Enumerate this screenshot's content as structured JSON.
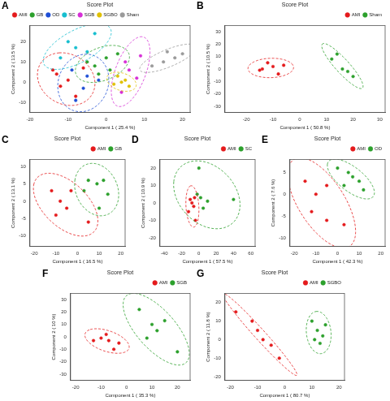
{
  "chart_data": [
    {
      "panel": "A",
      "type": "scatter",
      "title": "Score Plot",
      "x_label": "Component 1 ( 25.4 %)",
      "y_label": "Component 2 ( 13.5 %)",
      "xlim": [
        -20,
        22
      ],
      "ylim": [
        -15,
        28
      ],
      "xticks": [
        -20,
        -10,
        0,
        10,
        20
      ],
      "yticks": [
        -10,
        0,
        10,
        20
      ],
      "grid": false,
      "legend": "top-left",
      "series": [
        {
          "name": "AMI",
          "color": "#e41a1c",
          "marker": "circle",
          "x": [
            -13,
            -12,
            -8,
            -6,
            -10,
            -14
          ],
          "values": [
            4,
            -2,
            -7,
            7,
            1,
            6
          ]
        },
        {
          "name": "GB",
          "color": "#2ca02c",
          "marker": "circle",
          "x": [
            -3,
            0,
            3,
            -5,
            1,
            -2
          ],
          "values": [
            8,
            12,
            14,
            10,
            6,
            4
          ]
        },
        {
          "name": "OD",
          "color": "#1f4fd6",
          "marker": "circle",
          "x": [
            -9,
            -5,
            -6,
            -2,
            -8
          ],
          "values": [
            6,
            3,
            -3,
            1,
            -9
          ]
        },
        {
          "name": "SC",
          "color": "#17becf",
          "marker": "circle",
          "x": [
            -10,
            -5,
            -12,
            -3,
            -8
          ],
          "values": [
            20,
            15,
            12,
            24,
            17
          ]
        },
        {
          "name": "SGB",
          "color": "#d62fd6",
          "marker": "circle",
          "x": [
            5,
            9,
            4,
            8,
            6
          ],
          "values": [
            10,
            13,
            -5,
            2,
            6
          ]
        },
        {
          "name": "SGBO",
          "color": "#e0c000",
          "marker": "circle",
          "x": [
            2,
            5,
            3,
            6,
            4
          ],
          "values": [
            -1,
            1,
            3,
            -2,
            0
          ]
        },
        {
          "name": "Sham",
          "color": "#9a9a9a",
          "marker": "circle",
          "x": [
            15,
            18,
            16,
            12,
            20
          ],
          "values": [
            10,
            12,
            15,
            8,
            14
          ]
        }
      ]
    },
    {
      "panel": "B",
      "type": "scatter",
      "title": "Score Plot",
      "x_label": "Component 1 ( 50.8 %)",
      "y_label": "Component 2 ( 10.5 %)",
      "xlim": [
        -28,
        32
      ],
      "ylim": [
        -35,
        35
      ],
      "xticks": [
        -20,
        -10,
        0,
        10,
        20,
        30
      ],
      "yticks": [
        -30,
        -20,
        -10,
        0,
        10,
        20,
        30
      ],
      "grid": false,
      "legend": "top-right",
      "series": [
        {
          "name": "AMI",
          "color": "#e41a1c",
          "marker": "circle",
          "x": [
            -14,
            -10,
            -6,
            -12,
            -8,
            -15
          ],
          "values": [
            0,
            2,
            3,
            5,
            -4,
            -1
          ]
        },
        {
          "name": "Sham",
          "color": "#2ca02c",
          "marker": "circle",
          "x": [
            14,
            18,
            20,
            16,
            12
          ],
          "values": [
            12,
            -2,
            -6,
            0,
            8
          ]
        }
      ]
    },
    {
      "panel": "C",
      "type": "scatter",
      "title": "Score Plot",
      "x_label": "Component 1 ( 16.5 %)",
      "y_label": "Component 2 ( 13.1 %)",
      "xlim": [
        -22,
        22
      ],
      "ylim": [
        -13,
        12
      ],
      "xticks": [
        -20,
        -10,
        0,
        10,
        20
      ],
      "yticks": [
        -10,
        -5,
        0,
        5,
        10
      ],
      "grid": false,
      "legend": "top-right",
      "series": [
        {
          "name": "AMI",
          "color": "#e41a1c",
          "marker": "circle",
          "x": [
            -12,
            -8,
            -5,
            -10,
            -3,
            5
          ],
          "values": [
            3,
            0,
            -2,
            -4,
            3,
            -6
          ]
        },
        {
          "name": "GB",
          "color": "#2ca02c",
          "marker": "circle",
          "x": [
            5,
            9,
            12,
            14,
            3,
            10
          ],
          "values": [
            6,
            5,
            6,
            2,
            3,
            -2
          ]
        }
      ]
    },
    {
      "panel": "D",
      "type": "scatter",
      "title": "Score Plot",
      "x_label": "Component 1 ( 57.5 %)",
      "y_label": "Component 2 ( 10.9 %)",
      "xlim": [
        -45,
        65
      ],
      "ylim": [
        -25,
        25
      ],
      "xticks": [
        -40,
        -20,
        0,
        20,
        40,
        60
      ],
      "yticks": [
        -20,
        -10,
        0,
        10,
        20
      ],
      "grid": false,
      "legend": "top-right",
      "series": [
        {
          "name": "AMI",
          "color": "#e41a1c",
          "marker": "circle",
          "x": [
            -5,
            -8,
            -12,
            -4,
            -6,
            -10
          ],
          "values": [
            3,
            0,
            -5,
            -10,
            -2,
            2
          ]
        },
        {
          "name": "SC",
          "color": "#2ca02c",
          "marker": "circle",
          "x": [
            0,
            2,
            10,
            40,
            -2,
            5
          ],
          "values": [
            20,
            3,
            1,
            2,
            5,
            -3
          ]
        }
      ]
    },
    {
      "panel": "E",
      "type": "scatter",
      "title": "Score Plot",
      "x_label": "Component 1 ( 42.3 %)",
      "y_label": "Component 2 ( 7.6 %)",
      "xlim": [
        -22,
        22
      ],
      "ylim": [
        -12,
        8
      ],
      "xticks": [
        -20,
        -10,
        0,
        10,
        20
      ],
      "yticks": [
        -10,
        -5,
        0,
        5
      ],
      "grid": false,
      "legend": "top-right",
      "series": [
        {
          "name": "AMI",
          "color": "#e41a1c",
          "marker": "circle",
          "x": [
            -15,
            -10,
            -5,
            -12,
            3,
            -5
          ],
          "values": [
            3,
            0,
            2,
            -4,
            -7,
            -6
          ]
        },
        {
          "name": "OD",
          "color": "#2ca02c",
          "marker": "circle",
          "x": [
            0,
            5,
            10,
            12,
            7,
            3
          ],
          "values": [
            6,
            5,
            3,
            1,
            4,
            2
          ]
        }
      ]
    },
    {
      "panel": "F",
      "type": "scatter",
      "title": "Score Plot",
      "x_label": "Component 1 ( 35.3 %)",
      "y_label": "Component 2 ( 10 %)",
      "xlim": [
        -22,
        25
      ],
      "ylim": [
        -35,
        35
      ],
      "xticks": [
        -20,
        -10,
        0,
        10,
        20
      ],
      "yticks": [
        -30,
        -20,
        -10,
        0,
        10,
        20,
        30
      ],
      "grid": false,
      "legend": "top-right",
      "series": [
        {
          "name": "AMI",
          "color": "#e41a1c",
          "marker": "circle",
          "x": [
            -13,
            -10,
            -7,
            -5,
            -3,
            -8
          ],
          "values": [
            -3,
            -1,
            -3,
            -10,
            -5,
            2
          ]
        },
        {
          "name": "SGB",
          "color": "#2ca02c",
          "marker": "circle",
          "x": [
            5,
            10,
            12,
            8,
            20,
            15
          ],
          "values": [
            22,
            10,
            5,
            -1,
            -12,
            13
          ]
        }
      ]
    },
    {
      "panel": "G",
      "type": "scatter",
      "title": "Score Plot",
      "x_label": "Component 1 ( 80.7 %)",
      "y_label": "Component 2 ( 11.8 %)",
      "xlim": [
        -22,
        22
      ],
      "ylim": [
        -22,
        25
      ],
      "xticks": [
        -20,
        -10,
        0,
        10,
        20
      ],
      "yticks": [
        -20,
        -10,
        0,
        10,
        20
      ],
      "grid": false,
      "legend": "top-right",
      "series": [
        {
          "name": "AMI",
          "color": "#e41a1c",
          "marker": "circle",
          "x": [
            -18,
            -10,
            -8,
            -5,
            -2,
            -12
          ],
          "values": [
            15,
            5,
            0,
            -3,
            -10,
            10
          ]
        },
        {
          "name": "SGBO",
          "color": "#2ca02c",
          "marker": "circle",
          "x": [
            10,
            12,
            14,
            13,
            11,
            15
          ],
          "values": [
            10,
            5,
            2,
            -2,
            0,
            8
          ]
        }
      ]
    }
  ]
}
